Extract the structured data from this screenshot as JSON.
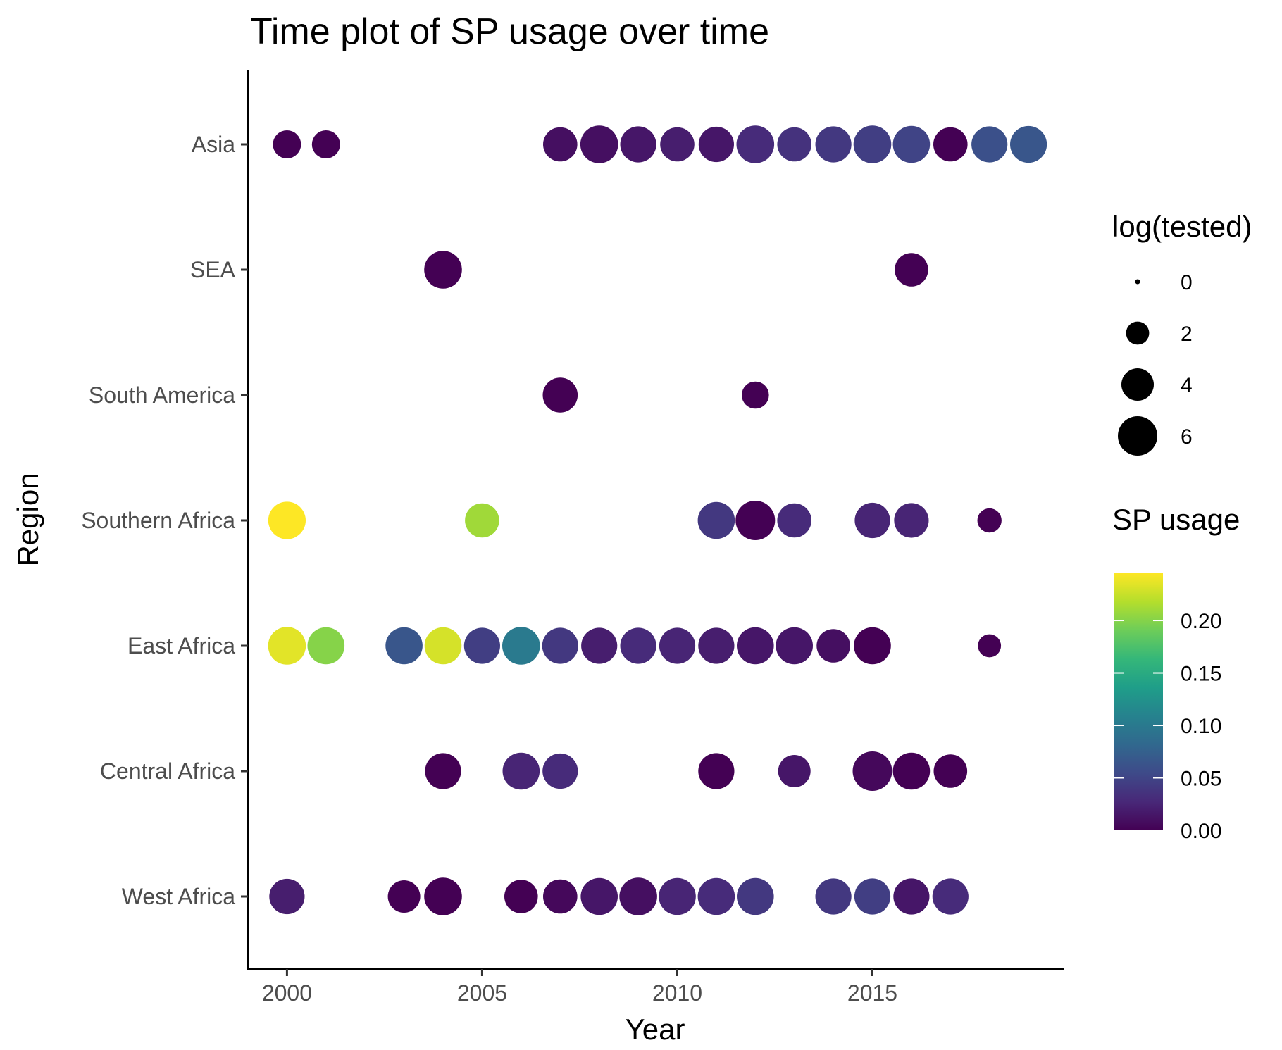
{
  "chart_data": {
    "type": "scatter",
    "title": "Time plot of SP usage over time",
    "xlabel": "Year",
    "ylabel": "Region",
    "xlim": [
      1999,
      2019.9
    ],
    "x_ticks": [
      2000,
      2005,
      2010,
      2015
    ],
    "x_tick_labels": [
      "2000",
      "2005",
      "2010",
      "2015"
    ],
    "categories": [
      "West Africa",
      "Central Africa",
      "East Africa",
      "Southern Africa",
      "South America",
      "SEA",
      "Asia"
    ],
    "grid": false,
    "size_legend": {
      "title": "log(tested)",
      "values": [
        0,
        2,
        4,
        6
      ],
      "labels": [
        "0",
        "2",
        "4",
        "6"
      ]
    },
    "color_legend": {
      "title": "SP usage",
      "range": [
        0,
        0.245
      ],
      "ticks": [
        0,
        0.05,
        0.1,
        0.15,
        0.2
      ],
      "tick_labels": [
        "0.00",
        "0.05",
        "0.10",
        "0.15",
        "0.20"
      ],
      "palette": [
        "#440154",
        "#482878",
        "#3E4A89",
        "#31688E",
        "#26828E",
        "#1F9E89",
        "#35B779",
        "#6DCD59",
        "#B4DE2C",
        "#FDE725"
      ]
    },
    "points": [
      {
        "region": "Asia",
        "year": 2000,
        "log_tested": 3.0,
        "sp_usage": 0.0
      },
      {
        "region": "Asia",
        "year": 2001,
        "log_tested": 3.0,
        "sp_usage": 0.0
      },
      {
        "region": "Asia",
        "year": 2007,
        "log_tested": 4.5,
        "sp_usage": 0.01
      },
      {
        "region": "Asia",
        "year": 2008,
        "log_tested": 5.5,
        "sp_usage": 0.01
      },
      {
        "region": "Asia",
        "year": 2009,
        "log_tested": 5.0,
        "sp_usage": 0.015
      },
      {
        "region": "Asia",
        "year": 2010,
        "log_tested": 4.5,
        "sp_usage": 0.02
      },
      {
        "region": "Asia",
        "year": 2011,
        "log_tested": 4.8,
        "sp_usage": 0.015
      },
      {
        "region": "Asia",
        "year": 2012,
        "log_tested": 5.5,
        "sp_usage": 0.03
      },
      {
        "region": "Asia",
        "year": 2013,
        "log_tested": 4.5,
        "sp_usage": 0.035
      },
      {
        "region": "Asia",
        "year": 2014,
        "log_tested": 5.0,
        "sp_usage": 0.04
      },
      {
        "region": "Asia",
        "year": 2015,
        "log_tested": 5.5,
        "sp_usage": 0.045
      },
      {
        "region": "Asia",
        "year": 2016,
        "log_tested": 5.3,
        "sp_usage": 0.05
      },
      {
        "region": "Asia",
        "year": 2017,
        "log_tested": 4.5,
        "sp_usage": 0.0
      },
      {
        "region": "Asia",
        "year": 2018,
        "log_tested": 5.0,
        "sp_usage": 0.06
      },
      {
        "region": "Asia",
        "year": 2019,
        "log_tested": 5.2,
        "sp_usage": 0.065
      },
      {
        "region": "SEA",
        "year": 2004,
        "log_tested": 5.5,
        "sp_usage": 0.0
      },
      {
        "region": "SEA",
        "year": 2016,
        "log_tested": 4.3,
        "sp_usage": 0.0
      },
      {
        "region": "South America",
        "year": 2007,
        "log_tested": 4.7,
        "sp_usage": 0.0
      },
      {
        "region": "South America",
        "year": 2012,
        "log_tested": 2.8,
        "sp_usage": 0.0
      },
      {
        "region": "Southern Africa",
        "year": 2000,
        "log_tested": 5.4,
        "sp_usage": 0.245
      },
      {
        "region": "Southern Africa",
        "year": 2005,
        "log_tested": 4.5,
        "sp_usage": 0.21
      },
      {
        "region": "Southern Africa",
        "year": 2011,
        "log_tested": 5.3,
        "sp_usage": 0.04
      },
      {
        "region": "Southern Africa",
        "year": 2012,
        "log_tested": 6.0,
        "sp_usage": 0.0
      },
      {
        "region": "Southern Africa",
        "year": 2013,
        "log_tested": 4.5,
        "sp_usage": 0.03
      },
      {
        "region": "Southern Africa",
        "year": 2015,
        "log_tested": 4.8,
        "sp_usage": 0.025
      },
      {
        "region": "Southern Africa",
        "year": 2016,
        "log_tested": 4.6,
        "sp_usage": 0.025
      },
      {
        "region": "Southern Africa",
        "year": 2018,
        "log_tested": 2.2,
        "sp_usage": 0.0
      },
      {
        "region": "East Africa",
        "year": 2000,
        "log_tested": 5.5,
        "sp_usage": 0.235
      },
      {
        "region": "East Africa",
        "year": 2001,
        "log_tested": 5.3,
        "sp_usage": 0.2
      },
      {
        "region": "East Africa",
        "year": 2003,
        "log_tested": 5.3,
        "sp_usage": 0.065
      },
      {
        "region": "East Africa",
        "year": 2004,
        "log_tested": 5.3,
        "sp_usage": 0.23
      },
      {
        "region": "East Africa",
        "year": 2005,
        "log_tested": 5.0,
        "sp_usage": 0.045
      },
      {
        "region": "East Africa",
        "year": 2006,
        "log_tested": 5.5,
        "sp_usage": 0.1
      },
      {
        "region": "East Africa",
        "year": 2007,
        "log_tested": 5.0,
        "sp_usage": 0.04
      },
      {
        "region": "East Africa",
        "year": 2008,
        "log_tested": 5.0,
        "sp_usage": 0.02
      },
      {
        "region": "East Africa",
        "year": 2009,
        "log_tested": 5.0,
        "sp_usage": 0.03
      },
      {
        "region": "East Africa",
        "year": 2010,
        "log_tested": 5.0,
        "sp_usage": 0.025
      },
      {
        "region": "East Africa",
        "year": 2011,
        "log_tested": 5.0,
        "sp_usage": 0.02
      },
      {
        "region": "East Africa",
        "year": 2012,
        "log_tested": 5.3,
        "sp_usage": 0.015
      },
      {
        "region": "East Africa",
        "year": 2013,
        "log_tested": 5.3,
        "sp_usage": 0.015
      },
      {
        "region": "East Africa",
        "year": 2014,
        "log_tested": 4.3,
        "sp_usage": 0.01
      },
      {
        "region": "East Africa",
        "year": 2015,
        "log_tested": 5.3,
        "sp_usage": 0.0
      },
      {
        "region": "East Africa",
        "year": 2018,
        "log_tested": 2.0,
        "sp_usage": 0.0
      },
      {
        "region": "Central Africa",
        "year": 2004,
        "log_tested": 5.0,
        "sp_usage": 0.0
      },
      {
        "region": "Central Africa",
        "year": 2006,
        "log_tested": 5.3,
        "sp_usage": 0.025
      },
      {
        "region": "Central Africa",
        "year": 2007,
        "log_tested": 4.8,
        "sp_usage": 0.03
      },
      {
        "region": "Central Africa",
        "year": 2011,
        "log_tested": 5.0,
        "sp_usage": 0.0
      },
      {
        "region": "Central Africa",
        "year": 2013,
        "log_tested": 4.0,
        "sp_usage": 0.015
      },
      {
        "region": "Central Africa",
        "year": 2015,
        "log_tested": 6.0,
        "sp_usage": 0.005
      },
      {
        "region": "Central Africa",
        "year": 2016,
        "log_tested": 5.3,
        "sp_usage": 0.0
      },
      {
        "region": "Central Africa",
        "year": 2017,
        "log_tested": 4.3,
        "sp_usage": 0.0
      },
      {
        "region": "West Africa",
        "year": 2000,
        "log_tested": 4.8,
        "sp_usage": 0.02
      },
      {
        "region": "West Africa",
        "year": 2003,
        "log_tested": 4.0,
        "sp_usage": 0.0
      },
      {
        "region": "West Africa",
        "year": 2004,
        "log_tested": 5.5,
        "sp_usage": 0.0
      },
      {
        "region": "West Africa",
        "year": 2006,
        "log_tested": 4.3,
        "sp_usage": 0.0
      },
      {
        "region": "West Africa",
        "year": 2007,
        "log_tested": 4.5,
        "sp_usage": 0.005
      },
      {
        "region": "West Africa",
        "year": 2008,
        "log_tested": 5.3,
        "sp_usage": 0.015
      },
      {
        "region": "West Africa",
        "year": 2009,
        "log_tested": 5.5,
        "sp_usage": 0.01
      },
      {
        "region": "West Africa",
        "year": 2010,
        "log_tested": 5.3,
        "sp_usage": 0.025
      },
      {
        "region": "West Africa",
        "year": 2011,
        "log_tested": 5.3,
        "sp_usage": 0.03
      },
      {
        "region": "West Africa",
        "year": 2012,
        "log_tested": 5.3,
        "sp_usage": 0.04
      },
      {
        "region": "West Africa",
        "year": 2014,
        "log_tested": 5.0,
        "sp_usage": 0.04
      },
      {
        "region": "West Africa",
        "year": 2015,
        "log_tested": 5.0,
        "sp_usage": 0.045
      },
      {
        "region": "West Africa",
        "year": 2016,
        "log_tested": 5.0,
        "sp_usage": 0.015
      },
      {
        "region": "West Africa",
        "year": 2017,
        "log_tested": 5.0,
        "sp_usage": 0.03
      }
    ]
  }
}
